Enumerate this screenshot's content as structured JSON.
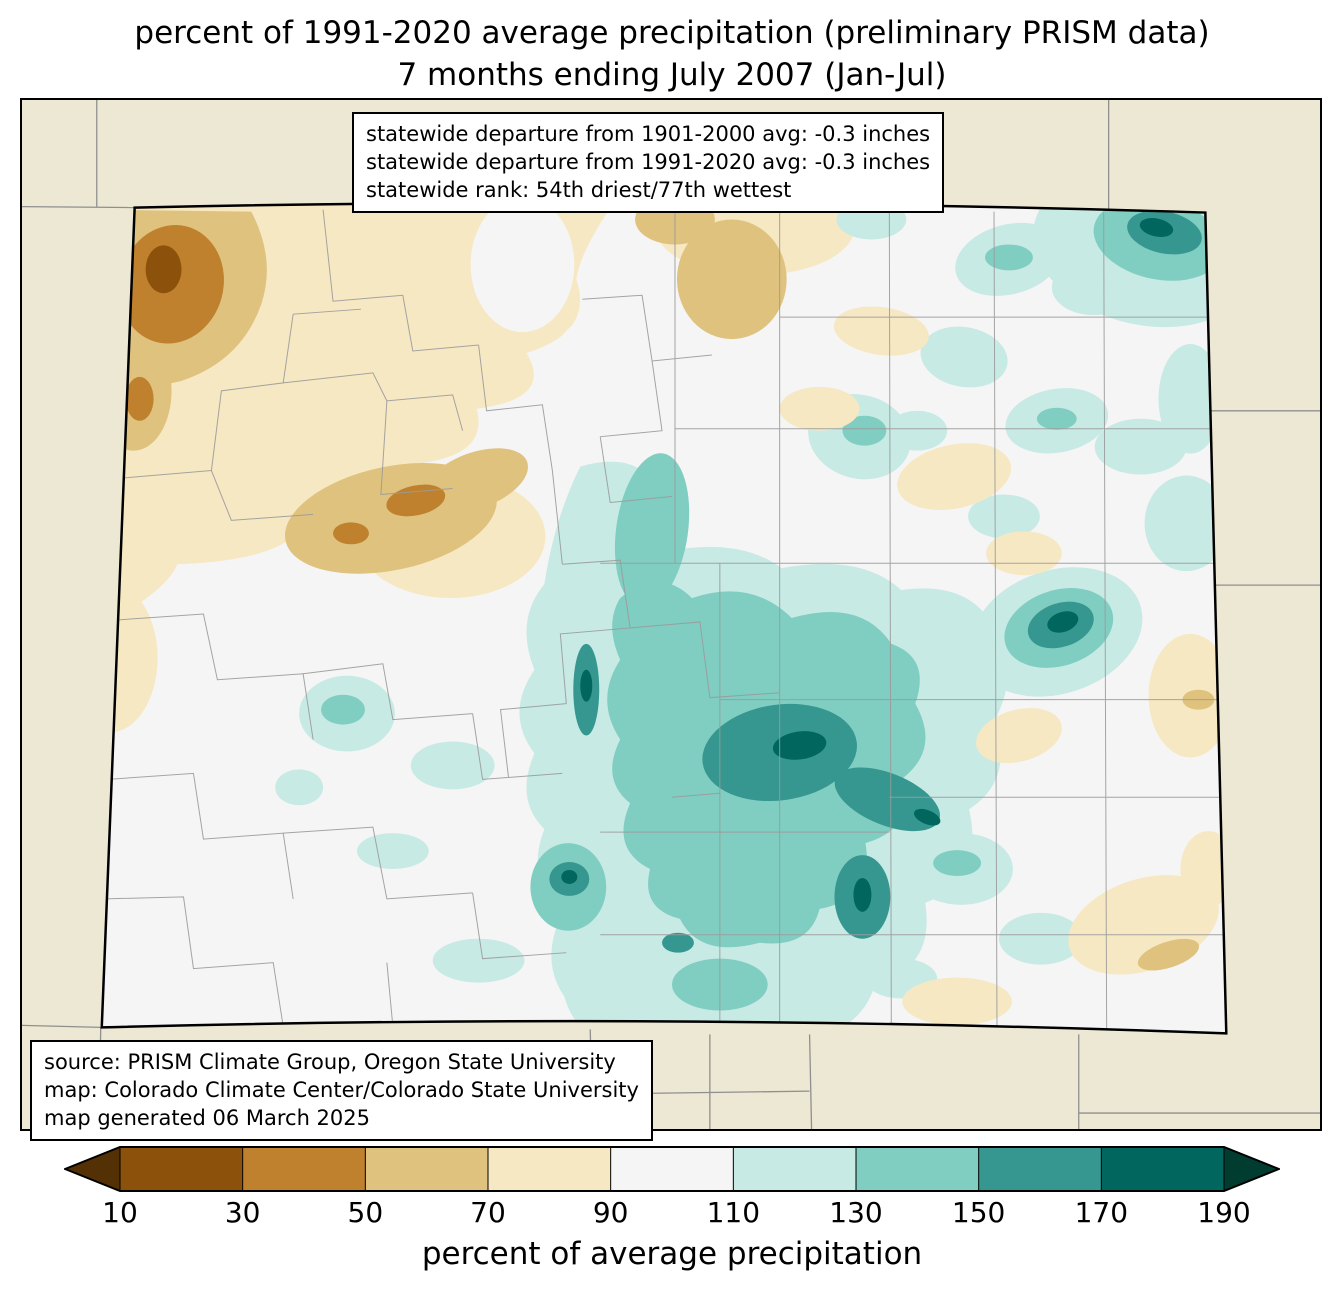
{
  "title": {
    "line1": "percent of 1991-2020 average precipitation (preliminary PRISM data)",
    "line2": "7 months ending July 2007 (Jan-Jul)"
  },
  "stats_box": {
    "line1": "statewide departure from 1901-2000 avg: -0.3 inches",
    "line2": "statewide departure from 1991-2020 avg: -0.3 inches",
    "line3": "statewide rank: 54th driest/77th wettest"
  },
  "source_box": {
    "line1": "source: PRISM Climate Group, Oregon State University",
    "line2": "map: Colorado Climate Center/Colorado State University",
    "line3": "map generated 06 March 2025"
  },
  "colorbar": {
    "caption": "percent of average precipitation",
    "tick_labels": [
      "10",
      "30",
      "50",
      "70",
      "90",
      "110",
      "130",
      "150",
      "170",
      "190"
    ],
    "colors": [
      "#543005",
      "#8c510a",
      "#bf812d",
      "#dfc27d",
      "#f6e8c3",
      "#f5f5f5",
      "#c7eae5",
      "#80cdc1",
      "#35978f",
      "#01665e",
      "#003c30"
    ]
  },
  "map_colors": {
    "outside_states_fill": "#ece8d4",
    "state_base_fill": "#f5f5f5",
    "state_border": "#000000",
    "county_lines": "#9b9b9b"
  }
}
